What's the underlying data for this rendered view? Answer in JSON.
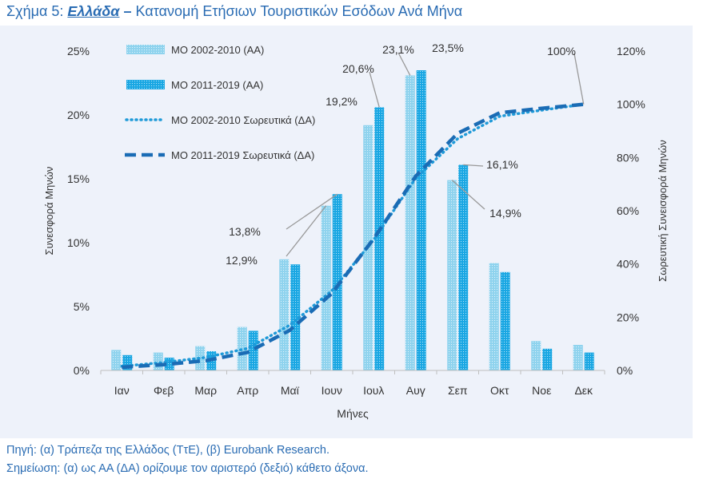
{
  "figure": {
    "prefix": "Σχήμα 5",
    "country": "Ελλάδα",
    "separator": "–",
    "title": "Κατανομή Ετήσιων Τουριστικών Εσόδων Ανά Μήνα"
  },
  "footer": {
    "source": "Πηγή: (α) Τράπεζα της Ελλάδος (ΤτΕ), (β) Eurobank Research.",
    "note": "Σημείωση: (α) ως ΑΑ (ΔΑ) ορίζουμε τον αριστερό (δεξιό) κάθετο άξονα."
  },
  "colors": {
    "background": "#eef2fa",
    "title": "#2a6cb3",
    "bar_2002_2010": "#8fd3ee",
    "bar_2011_2019": "#1aa7e3",
    "line_2002_2010": "#1f9ad8",
    "line_2011_2019": "#1a6cb5",
    "axis_text": "#333333",
    "leader": "#999999"
  },
  "chart_data": {
    "type": "bar",
    "xlabel": "Μήνες",
    "ylabel": "Συνεσφορά Μηνών",
    "y2label": "Σωρευτική Συνεισφορά Μηνών",
    "categories": [
      "Ιαν",
      "Φεβ",
      "Μαρ",
      "Απρ",
      "Μαϊ",
      "Ιουν",
      "Ιουλ",
      "Αυγ",
      "Σεπ",
      "Οκτ",
      "Νοε",
      "Δεκ"
    ],
    "ylim": [
      0,
      25
    ],
    "yticks": [
      "0%",
      "5%",
      "10%",
      "15%",
      "20%",
      "25%"
    ],
    "y2lim": [
      0,
      120
    ],
    "y2ticks": [
      "0%",
      "20%",
      "40%",
      "60%",
      "80%",
      "100%",
      "120%"
    ],
    "legend_position": "top-left",
    "series": [
      {
        "name": "ΜΟ 2002-2010 (ΑΑ)",
        "kind": "bar",
        "axis": "left",
        "values": [
          1.6,
          1.4,
          1.9,
          3.4,
          8.7,
          12.9,
          19.2,
          23.1,
          14.9,
          8.4,
          2.3,
          2.0
        ]
      },
      {
        "name": "ΜΟ 2011-2019 (ΑΑ)",
        "kind": "bar",
        "axis": "left",
        "values": [
          1.2,
          1.0,
          1.5,
          3.1,
          8.3,
          13.8,
          20.6,
          23.5,
          16.1,
          7.7,
          1.7,
          1.4
        ]
      },
      {
        "name": "ΜΟ 2002-2010 Σωρευτικά (ΔΑ)",
        "kind": "line",
        "style": "dotted",
        "axis": "right",
        "values": [
          1.6,
          3.0,
          4.9,
          8.3,
          17.0,
          29.9,
          49.1,
          72.2,
          87.1,
          95.5,
          97.8,
          100
        ]
      },
      {
        "name": "ΜΟ 2011-2019 Σωρευτικά (ΔΑ)",
        "kind": "line",
        "style": "dashed",
        "axis": "right",
        "values": [
          1.2,
          2.2,
          3.7,
          6.8,
          15.1,
          28.9,
          49.5,
          73.0,
          89.1,
          96.8,
          98.5,
          100
        ]
      }
    ],
    "annotations": [
      {
        "text": "23,1%",
        "series": 0,
        "index": 7
      },
      {
        "text": "23,5%",
        "series": 1,
        "index": 7
      },
      {
        "text": "20,6%",
        "series": 1,
        "index": 6
      },
      {
        "text": "19,2%",
        "series": 0,
        "index": 6
      },
      {
        "text": "16,1%",
        "series": 1,
        "index": 8
      },
      {
        "text": "14,9%",
        "series": 0,
        "index": 8
      },
      {
        "text": "13,8%",
        "series": 1,
        "index": 5
      },
      {
        "text": "12,9%",
        "series": 0,
        "index": 5
      },
      {
        "text": "100%",
        "series": 3,
        "index": 11
      }
    ]
  }
}
